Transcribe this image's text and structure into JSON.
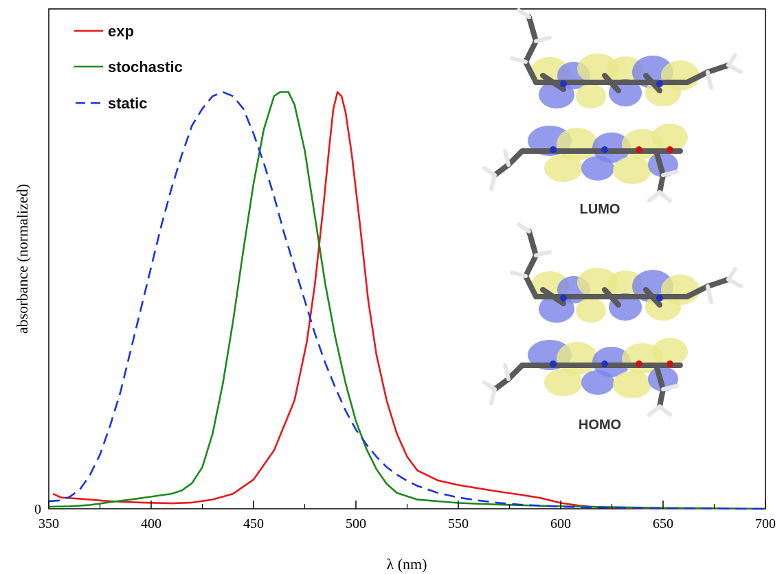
{
  "chart_data": {
    "type": "line",
    "title": "",
    "xlabel": "λ (nm)",
    "ylabel": "absorbance (normalized)",
    "xlim": [
      350,
      700
    ],
    "ylim": [
      0,
      1.1
    ],
    "x_ticks": [
      350,
      400,
      450,
      500,
      550,
      600,
      650,
      700
    ],
    "y_tick_labels": [
      "0"
    ],
    "grid": false,
    "legend_position": "top-left",
    "series": [
      {
        "name": "exp",
        "color": "#e8181c",
        "style": "solid",
        "points": [
          [
            352,
            0.036
          ],
          [
            356,
            0.027
          ],
          [
            365,
            0.024
          ],
          [
            380,
            0.018
          ],
          [
            395,
            0.015
          ],
          [
            410,
            0.013
          ],
          [
            420,
            0.015
          ],
          [
            430,
            0.022
          ],
          [
            440,
            0.036
          ],
          [
            450,
            0.07
          ],
          [
            460,
            0.14
          ],
          [
            470,
            0.26
          ],
          [
            476,
            0.4
          ],
          [
            480,
            0.54
          ],
          [
            484,
            0.72
          ],
          [
            487,
            0.87
          ],
          [
            489,
            0.96
          ],
          [
            491,
            1.0
          ],
          [
            493,
            0.99
          ],
          [
            495,
            0.95
          ],
          [
            498,
            0.85
          ],
          [
            502,
            0.68
          ],
          [
            506,
            0.5
          ],
          [
            510,
            0.37
          ],
          [
            515,
            0.26
          ],
          [
            520,
            0.18
          ],
          [
            525,
            0.125
          ],
          [
            530,
            0.092
          ],
          [
            540,
            0.068
          ],
          [
            550,
            0.057
          ],
          [
            560,
            0.049
          ],
          [
            570,
            0.041
          ],
          [
            580,
            0.034
          ],
          [
            590,
            0.026
          ],
          [
            600,
            0.014
          ],
          [
            610,
            0.007
          ],
          [
            620,
            0.003
          ],
          [
            650,
            0.001
          ],
          [
            700,
            0.0
          ]
        ]
      },
      {
        "name": "stochastic",
        "color": "#1a8a1a",
        "style": "solid",
        "points": [
          [
            350,
            0.005
          ],
          [
            360,
            0.006
          ],
          [
            370,
            0.009
          ],
          [
            380,
            0.016
          ],
          [
            390,
            0.022
          ],
          [
            400,
            0.029
          ],
          [
            410,
            0.036
          ],
          [
            415,
            0.044
          ],
          [
            420,
            0.062
          ],
          [
            425,
            0.1
          ],
          [
            430,
            0.18
          ],
          [
            435,
            0.3
          ],
          [
            440,
            0.45
          ],
          [
            445,
            0.62
          ],
          [
            450,
            0.78
          ],
          [
            455,
            0.91
          ],
          [
            460,
            0.99
          ],
          [
            463,
            1.0
          ],
          [
            467,
            1.0
          ],
          [
            470,
            0.97
          ],
          [
            475,
            0.86
          ],
          [
            480,
            0.7
          ],
          [
            485,
            0.54
          ],
          [
            490,
            0.41
          ],
          [
            495,
            0.3
          ],
          [
            500,
            0.21
          ],
          [
            505,
            0.145
          ],
          [
            510,
            0.095
          ],
          [
            515,
            0.06
          ],
          [
            520,
            0.038
          ],
          [
            530,
            0.022
          ],
          [
            550,
            0.014
          ],
          [
            570,
            0.01
          ],
          [
            600,
            0.006
          ],
          [
            650,
            0.002
          ],
          [
            700,
            0.0
          ]
        ]
      },
      {
        "name": "static",
        "color": "#1a33e0",
        "style": "dashed",
        "points": [
          [
            350,
            0.018
          ],
          [
            355,
            0.02
          ],
          [
            360,
            0.028
          ],
          [
            365,
            0.045
          ],
          [
            370,
            0.08
          ],
          [
            375,
            0.13
          ],
          [
            380,
            0.2
          ],
          [
            385,
            0.28
          ],
          [
            390,
            0.38
          ],
          [
            395,
            0.48
          ],
          [
            400,
            0.58
          ],
          [
            405,
            0.68
          ],
          [
            410,
            0.77
          ],
          [
            415,
            0.85
          ],
          [
            420,
            0.92
          ],
          [
            425,
            0.96
          ],
          [
            430,
            0.99
          ],
          [
            435,
            1.0
          ],
          [
            440,
            0.99
          ],
          [
            445,
            0.96
          ],
          [
            450,
            0.9
          ],
          [
            455,
            0.83
          ],
          [
            460,
            0.75
          ],
          [
            465,
            0.66
          ],
          [
            470,
            0.58
          ],
          [
            475,
            0.5
          ],
          [
            480,
            0.42
          ],
          [
            485,
            0.35
          ],
          [
            490,
            0.29
          ],
          [
            495,
            0.235
          ],
          [
            500,
            0.19
          ],
          [
            505,
            0.155
          ],
          [
            510,
            0.125
          ],
          [
            515,
            0.1
          ],
          [
            520,
            0.082
          ],
          [
            525,
            0.067
          ],
          [
            530,
            0.055
          ],
          [
            540,
            0.038
          ],
          [
            550,
            0.027
          ],
          [
            560,
            0.02
          ],
          [
            570,
            0.014
          ],
          [
            580,
            0.01
          ],
          [
            600,
            0.005
          ],
          [
            620,
            0.003
          ],
          [
            650,
            0.001
          ],
          [
            700,
            0.0
          ]
        ]
      }
    ],
    "annotations": [
      "LUMO",
      "HOMO"
    ]
  },
  "inset": {
    "lumo_label": "LUMO",
    "homo_label": "HOMO",
    "colors": {
      "positive_lobe": "#e9e88a",
      "negative_lobe": "#7c84e8",
      "carbon": "#5a5a5a",
      "hydrogen": "#e6e6e6",
      "nitrogen": "#2030c8",
      "oxygen": "#d01010"
    }
  }
}
